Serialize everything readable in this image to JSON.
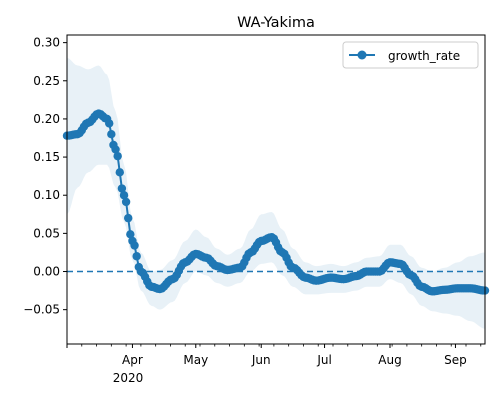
{
  "chart_data": {
    "type": "line",
    "title": "WA-Yakima",
    "xlabel": "",
    "ylabel": "",
    "x_start": "2020-03-01",
    "x_end": "2020-09-15",
    "ylim": [
      -0.095,
      0.31
    ],
    "yticks": [
      -0.05,
      0.0,
      0.05,
      0.1,
      0.15,
      0.2,
      0.25,
      0.3
    ],
    "ytick_labels": [
      "−0.05",
      "0.00",
      "0.05",
      "0.10",
      "0.15",
      "0.20",
      "0.25",
      "0.30"
    ],
    "xticks": [
      {
        "date": "2020-04-01",
        "label": "Apr"
      },
      {
        "date": "2020-05-01",
        "label": "May"
      },
      {
        "date": "2020-06-01",
        "label": "Jun"
      },
      {
        "date": "2020-07-01",
        "label": "Jul"
      },
      {
        "date": "2020-08-01",
        "label": "Aug"
      },
      {
        "date": "2020-09-01",
        "label": "Sep"
      }
    ],
    "year_label": "2020",
    "reference_line": {
      "y": 0.0,
      "style": "dashed",
      "color": "#1f77b4"
    },
    "legend": {
      "position": "top-right",
      "entries": [
        "growth_rate"
      ]
    },
    "series": [
      {
        "name": "growth_rate",
        "color": "#1f77b4",
        "band_color": "#1f77b4",
        "points": [
          {
            "x": "2020-03-01",
            "y": 0.178,
            "lo": 0.075,
            "hi": 0.28
          },
          {
            "x": "2020-03-06",
            "y": 0.18,
            "lo": 0.11,
            "hi": 0.27
          },
          {
            "x": "2020-03-11",
            "y": 0.195,
            "lo": 0.13,
            "hi": 0.265
          },
          {
            "x": "2020-03-16",
            "y": 0.207,
            "lo": 0.14,
            "hi": 0.27
          },
          {
            "x": "2020-03-20",
            "y": 0.2,
            "lo": 0.14,
            "hi": 0.258
          },
          {
            "x": "2020-03-24",
            "y": 0.16,
            "lo": 0.11,
            "hi": 0.21
          },
          {
            "x": "2020-03-28",
            "y": 0.1,
            "lo": 0.065,
            "hi": 0.14
          },
          {
            "x": "2020-04-01",
            "y": 0.04,
            "lo": 0.015,
            "hi": 0.07
          },
          {
            "x": "2020-04-05",
            "y": 0.0,
            "lo": -0.025,
            "hi": 0.025
          },
          {
            "x": "2020-04-10",
            "y": -0.02,
            "lo": -0.045,
            "hi": 0.0
          },
          {
            "x": "2020-04-14",
            "y": -0.023,
            "lo": -0.05,
            "hi": 0.002
          },
          {
            "x": "2020-04-20",
            "y": -0.01,
            "lo": -0.04,
            "hi": 0.015
          },
          {
            "x": "2020-04-26",
            "y": 0.012,
            "lo": -0.015,
            "hi": 0.04
          },
          {
            "x": "2020-05-01",
            "y": 0.023,
            "lo": 0.0,
            "hi": 0.055
          },
          {
            "x": "2020-05-06",
            "y": 0.018,
            "lo": -0.005,
            "hi": 0.045
          },
          {
            "x": "2020-05-11",
            "y": 0.007,
            "lo": -0.015,
            "hi": 0.03
          },
          {
            "x": "2020-05-16",
            "y": 0.002,
            "lo": -0.02,
            "hi": 0.022
          },
          {
            "x": "2020-05-22",
            "y": 0.005,
            "lo": -0.015,
            "hi": 0.03
          },
          {
            "x": "2020-05-27",
            "y": 0.025,
            "lo": 0.0,
            "hi": 0.055
          },
          {
            "x": "2020-06-01",
            "y": 0.04,
            "lo": 0.01,
            "hi": 0.075
          },
          {
            "x": "2020-06-06",
            "y": 0.045,
            "lo": 0.012,
            "hi": 0.078
          },
          {
            "x": "2020-06-11",
            "y": 0.025,
            "lo": -0.005,
            "hi": 0.055
          },
          {
            "x": "2020-06-16",
            "y": 0.005,
            "lo": -0.02,
            "hi": 0.03
          },
          {
            "x": "2020-06-22",
            "y": -0.008,
            "lo": -0.03,
            "hi": 0.012
          },
          {
            "x": "2020-06-27",
            "y": -0.012,
            "lo": -0.03,
            "hi": 0.007
          },
          {
            "x": "2020-07-04",
            "y": -0.008,
            "lo": -0.028,
            "hi": 0.01
          },
          {
            "x": "2020-07-10",
            "y": -0.01,
            "lo": -0.028,
            "hi": 0.007
          },
          {
            "x": "2020-07-16",
            "y": -0.006,
            "lo": -0.025,
            "hi": 0.012
          },
          {
            "x": "2020-07-21",
            "y": 0.0,
            "lo": -0.02,
            "hi": 0.018
          },
          {
            "x": "2020-07-27",
            "y": 0.0,
            "lo": -0.02,
            "hi": 0.02
          },
          {
            "x": "2020-08-01",
            "y": 0.012,
            "lo": -0.01,
            "hi": 0.035
          },
          {
            "x": "2020-08-06",
            "y": 0.01,
            "lo": -0.015,
            "hi": 0.035
          },
          {
            "x": "2020-08-11",
            "y": -0.005,
            "lo": -0.03,
            "hi": 0.02
          },
          {
            "x": "2020-08-16",
            "y": -0.02,
            "lo": -0.045,
            "hi": 0.005
          },
          {
            "x": "2020-08-21",
            "y": -0.026,
            "lo": -0.052,
            "hi": 0.0
          },
          {
            "x": "2020-08-27",
            "y": -0.024,
            "lo": -0.055,
            "hi": 0.005
          },
          {
            "x": "2020-09-02",
            "y": -0.022,
            "lo": -0.058,
            "hi": 0.012
          },
          {
            "x": "2020-09-08",
            "y": -0.022,
            "lo": -0.065,
            "hi": 0.02
          },
          {
            "x": "2020-09-15",
            "y": -0.025,
            "lo": -0.075,
            "hi": 0.025
          }
        ]
      }
    ]
  }
}
